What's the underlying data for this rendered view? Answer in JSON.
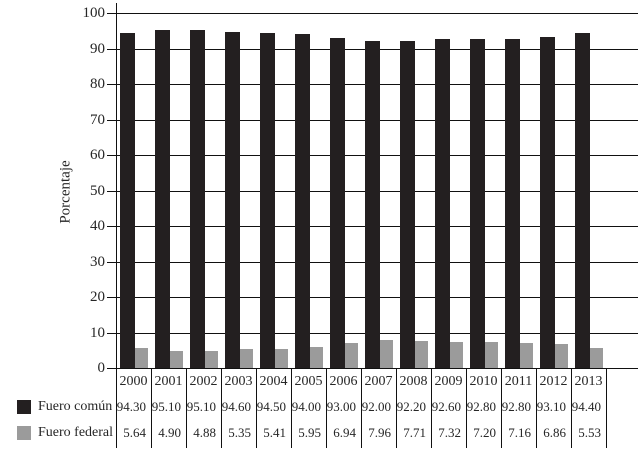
{
  "chart_data": {
    "type": "bar",
    "title": "",
    "ylabel": "Porcentaje",
    "xlabel": "",
    "ylim": [
      0,
      100
    ],
    "ytick_step": 10,
    "grid": true,
    "legend_position": "bottom-left-table",
    "categories": [
      "2000",
      "2001",
      "2002",
      "2003",
      "2004",
      "2005",
      "2006",
      "2007",
      "2008",
      "2009",
      "2010",
      "2011",
      "2012",
      "2013"
    ],
    "series": [
      {
        "name": "Fuero común",
        "color": "#231f20",
        "values": [
          94.3,
          95.1,
          95.1,
          94.6,
          94.5,
          94.0,
          93.0,
          92.0,
          92.2,
          92.6,
          92.8,
          92.8,
          93.1,
          94.4
        ],
        "display": [
          "94.30",
          "95.10",
          "95.10",
          "94.60",
          "94.50",
          "94.00",
          "93.00",
          "92.00",
          "92.20",
          "92.60",
          "92.80",
          "92.80",
          "93.10",
          "94.40"
        ]
      },
      {
        "name": "Fuero federal",
        "color": "#9b9b9b",
        "values": [
          5.64,
          4.9,
          4.88,
          5.35,
          5.41,
          5.95,
          6.94,
          7.96,
          7.71,
          7.32,
          7.2,
          7.16,
          6.86,
          5.53
        ],
        "display": [
          "5.64",
          "4.90",
          "4.88",
          "5.35",
          "5.41",
          "5.95",
          "6.94",
          "7.96",
          "7.71",
          "7.32",
          "7.20",
          "7.16",
          "6.86",
          "5.53"
        ]
      }
    ]
  }
}
